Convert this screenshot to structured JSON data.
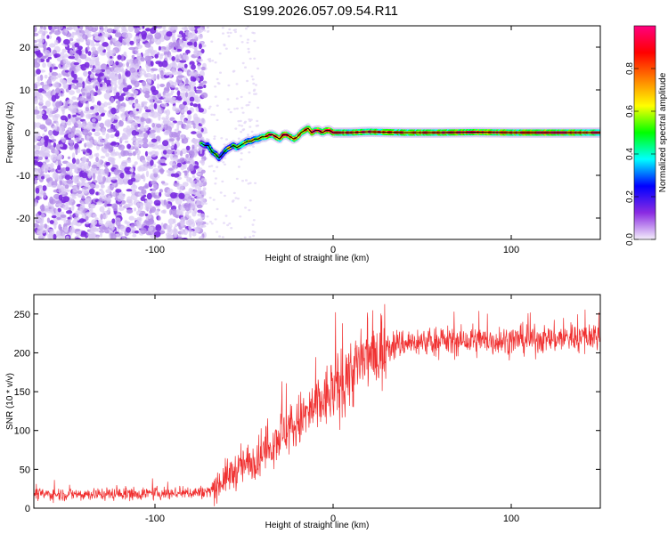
{
  "title": "S199.2026.057.09.54.R11",
  "chart_data": [
    {
      "type": "heatmap",
      "xlabel": "Height of straight line (km)",
      "ylabel": "Frequency (Hz)",
      "xlim": [
        -168,
        150
      ],
      "ylim": [
        -25,
        25
      ],
      "xticks": [
        -100,
        0,
        100
      ],
      "xtick_labels": [
        "-100",
        "0",
        "100"
      ],
      "yticks": [
        -20,
        -10,
        0,
        10,
        20
      ],
      "ytick_labels": [
        "-20",
        "-10",
        "0",
        "10",
        "20"
      ],
      "colorbar": {
        "label": "Normalized spectral amplitude",
        "range": [
          0,
          1
        ],
        "ticks": [
          0,
          0.2,
          0.4,
          0.6,
          0.8
        ],
        "tick_labels": [
          "0.0",
          "0.2",
          "0.4",
          "0.6",
          "0.8"
        ],
        "colors": [
          "#f4eefb",
          "#8a2be2",
          "#0000ff",
          "#00ffff",
          "#00ff00",
          "#ffff00",
          "#ff8000",
          "#ff0000",
          "#ff0080"
        ]
      },
      "signal_trace": {
        "x": [
          -74,
          -72,
          -70,
          -68,
          -66,
          -64,
          -62,
          -60,
          -58,
          -56,
          -54,
          -52,
          -50,
          -48,
          -46,
          -44,
          -42,
          -40,
          -38,
          -36,
          -34,
          -32,
          -30,
          -28,
          -26,
          -24,
          -22,
          -20,
          -18,
          -16,
          -14,
          -12,
          -10,
          -8,
          -6,
          -4,
          -2,
          0,
          2,
          4,
          6,
          8,
          10,
          20,
          40,
          60,
          80,
          100,
          120,
          150
        ],
        "y": [
          -2.5,
          -3.0,
          -3.0,
          -4.5,
          -5.0,
          -6.0,
          -5.0,
          -4.0,
          -3.5,
          -3.0,
          -3.5,
          -3.0,
          -2.5,
          -2.0,
          -2.0,
          -1.5,
          -1.5,
          -1.0,
          -1.0,
          -0.5,
          -0.5,
          -1.0,
          -1.5,
          -0.5,
          -0.5,
          -1.0,
          -1.5,
          -1.0,
          0.0,
          0.5,
          1.0,
          0.0,
          0.5,
          0.5,
          0.0,
          0.5,
          0.5,
          0.0,
          0.0,
          0.0,
          0.0,
          0.0,
          0.0,
          0.2,
          0.0,
          0.0,
          0.1,
          0.0,
          0.0,
          0.0
        ],
        "amplitude": [
          0.35,
          0.3,
          0.4,
          0.35,
          0.45,
          0.3,
          0.35,
          0.4,
          0.5,
          0.45,
          0.55,
          0.5,
          0.6,
          0.55,
          0.65,
          0.6,
          0.7,
          0.65,
          0.75,
          0.8,
          0.85,
          0.8,
          0.75,
          0.85,
          0.9,
          0.85,
          0.8,
          0.75,
          0.7,
          0.75,
          0.8,
          0.85,
          0.9,
          0.95,
          0.9,
          0.85,
          0.9,
          0.95,
          0.9,
          0.85,
          0.8,
          0.75,
          0.8,
          0.85,
          0.8,
          0.85,
          0.9,
          0.85,
          0.9,
          0.8
        ]
      },
      "noise_region_x": [
        -168,
        -72
      ]
    },
    {
      "type": "line",
      "xlabel": "Height of straight line (km)",
      "ylabel": "SNR (10 * v/v)",
      "xlim": [
        -168,
        150
      ],
      "ylim": [
        0,
        275
      ],
      "xticks": [
        -100,
        0,
        100
      ],
      "xtick_labels": [
        "-100",
        "0",
        "100"
      ],
      "yticks": [
        0,
        50,
        100,
        150,
        200,
        250
      ],
      "ytick_labels": [
        "0",
        "50",
        "100",
        "150",
        "200",
        "250"
      ],
      "color": "#f03030",
      "trend": {
        "x": [
          -168,
          -140,
          -100,
          -80,
          -70,
          -60,
          -50,
          -40,
          -30,
          -20,
          -10,
          0,
          10,
          20,
          30,
          40,
          60,
          80,
          100,
          120,
          150
        ],
        "y": [
          18,
          18,
          19,
          20,
          21,
          40,
          55,
          70,
          95,
          110,
          130,
          150,
          175,
          195,
          208,
          213,
          215,
          215,
          216,
          218,
          222
        ]
      }
    }
  ]
}
